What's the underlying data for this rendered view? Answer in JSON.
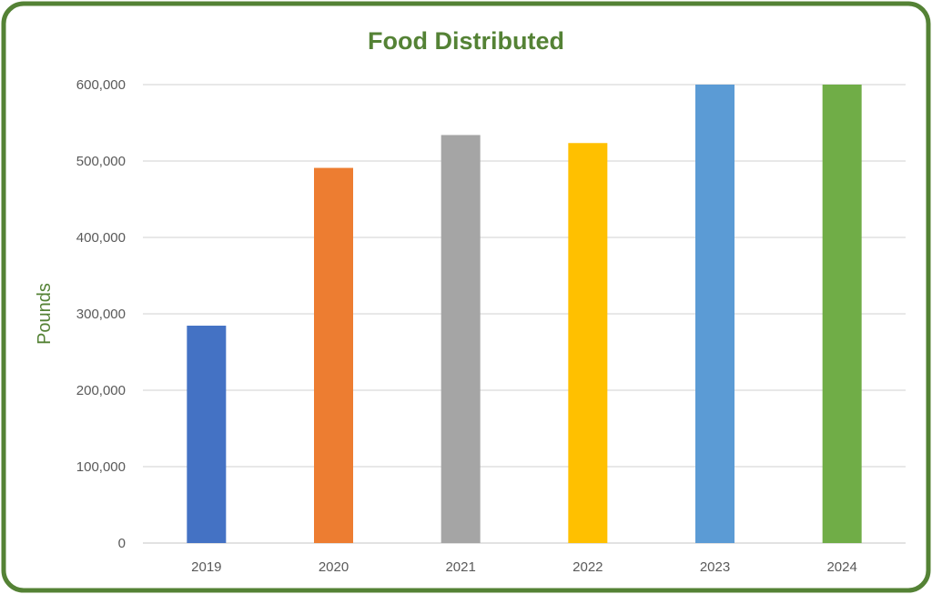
{
  "chart_data": {
    "type": "bar",
    "title": "Food Distributed",
    "xlabel": "",
    "ylabel": "Pounds",
    "categories": [
      "2019",
      "2020",
      "2021",
      "2022",
      "2023",
      "2024"
    ],
    "values": [
      284500,
      491000,
      534000,
      523500,
      600000,
      600000
    ],
    "colors": [
      "#4472C4",
      "#ED7D31",
      "#A5A5A5",
      "#FFC000",
      "#5B9BD5",
      "#70AD47"
    ],
    "ylim": [
      0,
      600000
    ],
    "yticks": [
      0,
      100000,
      200000,
      300000,
      400000,
      500000,
      600000
    ],
    "ytick_labels": [
      "0",
      "100,000",
      "200,000",
      "300,000",
      "400,000",
      "500,000",
      "600,000"
    ],
    "grid": true,
    "border_color": "#548235"
  }
}
